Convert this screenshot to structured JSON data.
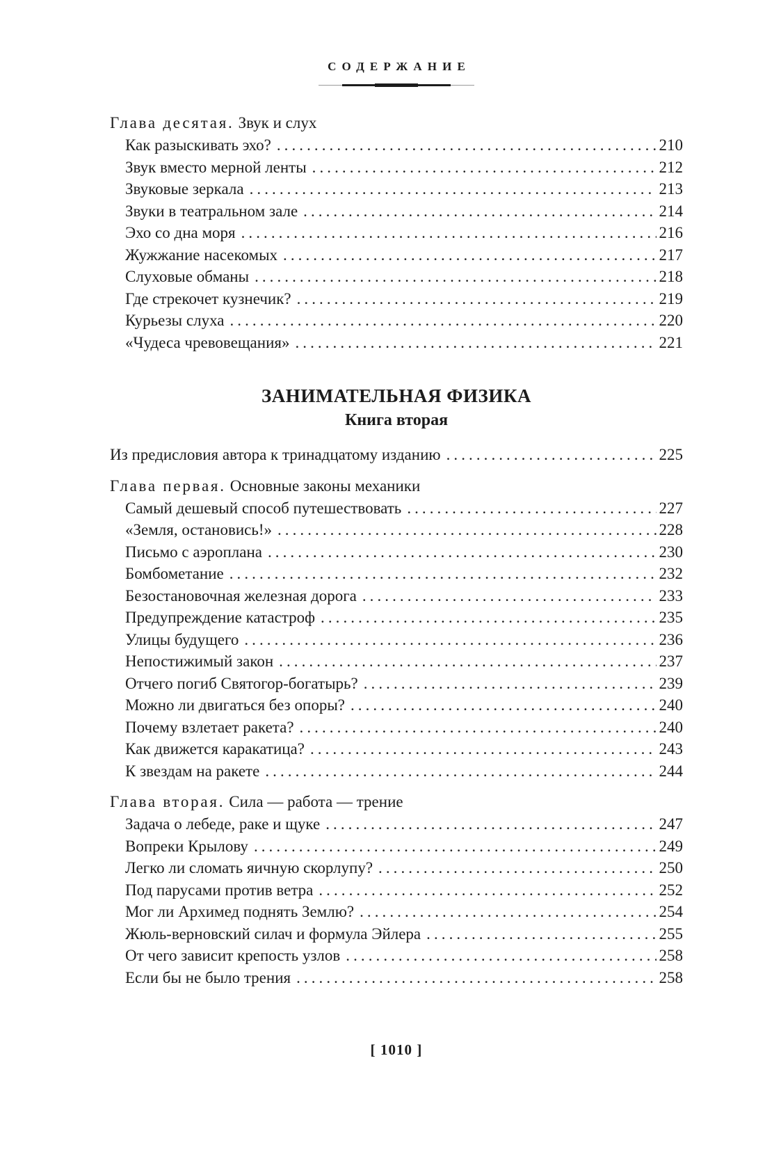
{
  "colors": {
    "ink": "#1c1c1c",
    "paper": "#ffffff"
  },
  "header": {
    "title": "СОДЕРЖАНИЕ"
  },
  "toc": {
    "blocks": [
      {
        "type": "chapter",
        "label": "Глава десятая.",
        "title": "Звук и слух",
        "entries": [
          {
            "title": "Как разыскивать эхо?",
            "page": "210"
          },
          {
            "title": "Звук вместо мерной ленты",
            "page": "212"
          },
          {
            "title": "Звуковые зеркала",
            "page": "213"
          },
          {
            "title": "Звуки в театральном зале",
            "page": "214"
          },
          {
            "title": "Эхо со дна моря",
            "page": "216"
          },
          {
            "title": "Жужжание насекомых",
            "page": "217"
          },
          {
            "title": "Слуховые обманы",
            "page": "218"
          },
          {
            "title": "Где стрекочет кузнечик?",
            "page": "219"
          },
          {
            "title": "Курьезы слуха",
            "page": "220"
          },
          {
            "title": "«Чудеса чревовещания»",
            "page": "221"
          }
        ]
      },
      {
        "type": "book_title",
        "title": "ЗАНИМАТЕЛЬНАЯ ФИЗИКА",
        "subtitle": "Книга вторая"
      },
      {
        "type": "entry",
        "title": "Из предисловия автора к тринадцатому изданию",
        "page": "225"
      },
      {
        "type": "chapter",
        "label": "Глава первая.",
        "title": "Основные законы механики",
        "entries": [
          {
            "title": "Самый дешевый способ путешествовать",
            "page": "227"
          },
          {
            "title": "«Земля, остановись!»",
            "page": "228"
          },
          {
            "title": "Письмо с аэроплана",
            "page": "230"
          },
          {
            "title": "Бомбометание",
            "page": "232"
          },
          {
            "title": "Безостановочная железная дорога",
            "page": "233"
          },
          {
            "title": "Предупреждение катастроф",
            "page": "235"
          },
          {
            "title": "Улицы будущего",
            "page": "236"
          },
          {
            "title": "Непостижимый закон",
            "page": "237"
          },
          {
            "title": "Отчего погиб Святогор-богатырь?",
            "page": "239"
          },
          {
            "title": "Можно ли двигаться без опоры?",
            "page": "240"
          },
          {
            "title": "Почему взлетает ракета?",
            "page": "240"
          },
          {
            "title": "Как движется каракатица?",
            "page": "243"
          },
          {
            "title": "К звездам на ракете",
            "page": "244"
          }
        ]
      },
      {
        "type": "chapter",
        "label": "Глава вторая.",
        "title": "Сила — работа — трение",
        "entries": [
          {
            "title": "Задача о лебеде, раке и щуке",
            "page": "247"
          },
          {
            "title": "Вопреки Крылову",
            "page": "249"
          },
          {
            "title": "Легко ли сломать яичную скорлупу?",
            "page": "250"
          },
          {
            "title": "Под парусами против ветра",
            "page": "252"
          },
          {
            "title": "Мог ли Архимед поднять Землю?",
            "page": "254"
          },
          {
            "title": "Жюль-верновский силач и формула Эйлера",
            "page": "255"
          },
          {
            "title": "От чего зависит крепость узлов",
            "page": "258"
          },
          {
            "title": "Если бы не было трения",
            "page": "258"
          }
        ]
      }
    ]
  },
  "footer": {
    "page_number": "[ 1010 ]"
  }
}
